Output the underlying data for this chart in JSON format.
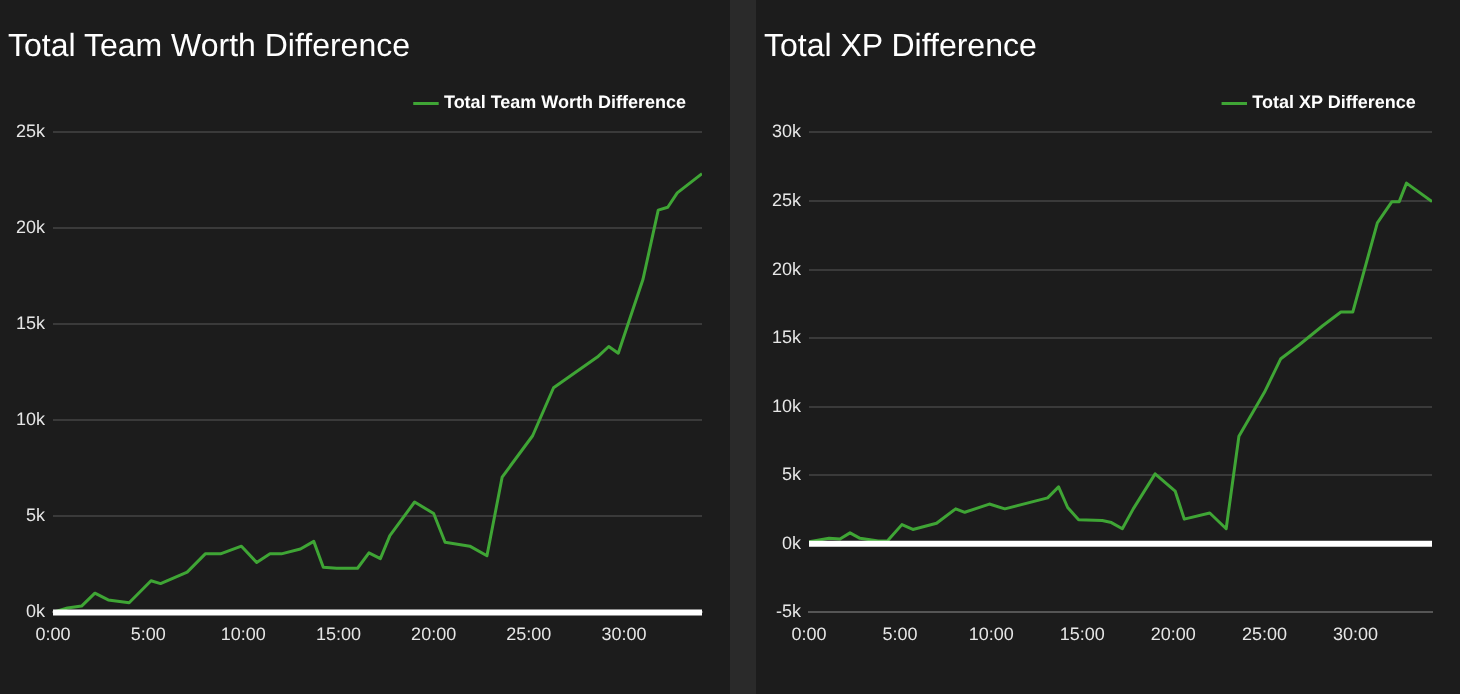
{
  "chart_data": [
    {
      "type": "line",
      "title": "Total Team Worth Difference",
      "legend": "top right",
      "grid": "y",
      "marker": "none",
      "x": [
        0,
        0.76,
        1.5,
        2.2,
        2.9,
        4.0,
        5.15,
        5.65,
        7.05,
        8.0,
        8.8,
        9.9,
        10.7,
        11.4,
        12.0,
        13.0,
        13.7,
        14.2,
        14.9,
        16.0,
        16.6,
        17.2,
        17.7,
        19.0,
        20.0,
        20.6,
        21.9,
        22.8,
        23.6,
        25.2,
        26.3,
        28.6,
        29.2,
        29.7,
        31.0,
        31.8,
        32.3,
        32.8,
        34.1
      ],
      "series": [
        {
          "name": "Total Team Worth Difference",
          "color": "#3fa535",
          "values": [
            0,
            0.23,
            0.33,
            1.0,
            0.65,
            0.5,
            1.65,
            1.5,
            2.1,
            3.05,
            3.05,
            3.45,
            2.6,
            3.05,
            3.05,
            3.3,
            3.7,
            2.35,
            2.3,
            2.3,
            3.1,
            2.8,
            4.0,
            5.75,
            5.15,
            3.65,
            3.45,
            2.95,
            7.05,
            9.2,
            11.7,
            13.3,
            13.85,
            13.5,
            17.35,
            20.95,
            21.1,
            21.85,
            22.85
          ]
        }
      ],
      "xlim": [
        0,
        34.1
      ],
      "xticks": [
        {
          "value": 0,
          "label": "0:00"
        },
        {
          "value": 5,
          "label": "5:00"
        },
        {
          "value": 10,
          "label": "10:00"
        },
        {
          "value": 15,
          "label": "15:00"
        },
        {
          "value": 20,
          "label": "20:00"
        },
        {
          "value": 25,
          "label": "25:00"
        },
        {
          "value": 30,
          "label": "30:00"
        }
      ],
      "ylim": [
        0,
        25
      ],
      "yticks": [
        {
          "value": 0,
          "label": "0k"
        },
        {
          "value": 5,
          "label": "5k"
        },
        {
          "value": 10,
          "label": "10k"
        },
        {
          "value": 15,
          "label": "15k"
        },
        {
          "value": 20,
          "label": "20k"
        },
        {
          "value": 25,
          "label": "25k"
        }
      ],
      "ref_lines": [
        {
          "axis": "y",
          "value": 0,
          "color": "#ffffff"
        }
      ]
    },
    {
      "type": "line",
      "title": "Total XP Difference",
      "legend": "top right",
      "grid": "y",
      "marker": "none",
      "x": [
        0,
        1.1,
        1.7,
        2.25,
        2.8,
        3.8,
        4.3,
        5.1,
        5.7,
        7.0,
        8.05,
        8.55,
        9.9,
        10.75,
        13.1,
        13.7,
        14.2,
        14.8,
        16.1,
        16.6,
        17.2,
        17.8,
        19.0,
        20.1,
        20.6,
        22.0,
        22.9,
        23.6,
        25.0,
        25.9,
        26.9,
        28.2,
        29.2,
        29.85,
        31.2,
        32.0,
        32.4,
        32.8,
        34.2
      ],
      "series": [
        {
          "name": "Total XP Difference",
          "color": "#3fa535",
          "values": [
            0.15,
            0.4,
            0.35,
            0.8,
            0.4,
            0.2,
            0.2,
            1.4,
            1.05,
            1.5,
            2.55,
            2.3,
            2.9,
            2.55,
            3.35,
            4.15,
            2.65,
            1.75,
            1.7,
            1.55,
            1.1,
            2.55,
            5.1,
            3.85,
            1.8,
            2.25,
            1.1,
            7.85,
            11.05,
            13.5,
            14.5,
            15.9,
            16.9,
            16.9,
            23.4,
            24.95,
            24.95,
            26.3,
            24.95
          ]
        }
      ],
      "xlim": [
        0,
        34.2
      ],
      "xticks": [
        {
          "value": 0,
          "label": "0:00"
        },
        {
          "value": 5,
          "label": "5:00"
        },
        {
          "value": 10,
          "label": "10:00"
        },
        {
          "value": 15,
          "label": "15:00"
        },
        {
          "value": 20,
          "label": "20:00"
        },
        {
          "value": 25,
          "label": "25:00"
        },
        {
          "value": 30,
          "label": "30:00"
        }
      ],
      "ylim": [
        -5,
        30
      ],
      "yticks": [
        {
          "value": -5,
          "label": "-5k"
        },
        {
          "value": 0,
          "label": "0k"
        },
        {
          "value": 5,
          "label": "5k"
        },
        {
          "value": 10,
          "label": "10k"
        },
        {
          "value": 15,
          "label": "15k"
        },
        {
          "value": 20,
          "label": "20k"
        },
        {
          "value": 25,
          "label": "25k"
        },
        {
          "value": 30,
          "label": "30k"
        }
      ],
      "ref_lines": [
        {
          "axis": "y",
          "value": 0,
          "color": "#ffffff"
        }
      ]
    }
  ]
}
